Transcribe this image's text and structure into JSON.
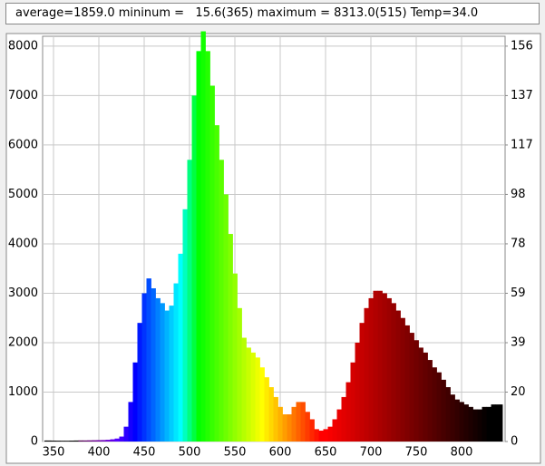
{
  "status": "average=1859.0 mininum =   15.6(365) maximum = 8313.0(515) Temp=34.0",
  "chart_data": {
    "type": "spectrum",
    "x": [
      340,
      345,
      350,
      355,
      360,
      365,
      370,
      375,
      380,
      385,
      390,
      395,
      400,
      405,
      410,
      415,
      420,
      425,
      430,
      435,
      440,
      445,
      450,
      455,
      460,
      465,
      470,
      475,
      480,
      485,
      490,
      495,
      500,
      505,
      510,
      515,
      520,
      525,
      530,
      535,
      540,
      545,
      550,
      555,
      560,
      565,
      570,
      575,
      580,
      585,
      590,
      595,
      600,
      605,
      610,
      615,
      620,
      625,
      630,
      635,
      640,
      645,
      650,
      655,
      660,
      665,
      670,
      675,
      680,
      685,
      690,
      695,
      700,
      705,
      710,
      715,
      720,
      725,
      730,
      735,
      740,
      745,
      750,
      755,
      760,
      765,
      770,
      775,
      780,
      785,
      790,
      795,
      800,
      805,
      810,
      815,
      820,
      825,
      830,
      835,
      840,
      845
    ],
    "values": [
      20,
      20,
      18,
      17,
      16,
      16,
      18,
      20,
      22,
      22,
      24,
      26,
      28,
      30,
      35,
      45,
      60,
      100,
      300,
      800,
      1600,
      2400,
      3000,
      3300,
      3100,
      2900,
      2800,
      2650,
      2750,
      3200,
      3800,
      4700,
      5700,
      7000,
      7900,
      8300,
      7900,
      7200,
      6400,
      5700,
      5000,
      4200,
      3400,
      2700,
      2100,
      1900,
      1800,
      1700,
      1500,
      1300,
      1100,
      900,
      700,
      550,
      550,
      700,
      800,
      800,
      600,
      450,
      250,
      220,
      250,
      300,
      450,
      650,
      900,
      1200,
      1600,
      2000,
      2400,
      2700,
      2900,
      3050,
      3050,
      3000,
      2900,
      2800,
      2650,
      2500,
      2350,
      2200,
      2050,
      1900,
      1800,
      1650,
      1500,
      1400,
      1250,
      1100,
      950,
      850,
      800,
      750,
      700,
      650,
      650,
      700,
      700,
      750,
      750,
      750
    ],
    "xlim": [
      338,
      848
    ],
    "xticks": [
      350,
      400,
      450,
      500,
      550,
      600,
      650,
      700,
      750,
      800
    ],
    "ylim": [
      0,
      8200
    ],
    "yticks": [
      0,
      1000,
      2000,
      3000,
      4000,
      5000,
      6000,
      7000,
      8000
    ],
    "y2lim": [
      0,
      160.16
    ],
    "y2ticks": [
      0,
      {
        "value": 19.53,
        "label": "20"
      },
      {
        "value": 39.06,
        "label": "39"
      },
      {
        "value": 58.59,
        "label": "59"
      },
      {
        "value": 78.13,
        "label": "78"
      },
      {
        "value": 97.66,
        "label": "98"
      },
      {
        "value": 117.19,
        "label": "117"
      },
      {
        "value": 136.72,
        "label": "137"
      },
      {
        "value": 156.25,
        "label": "156"
      }
    ],
    "grid": true
  }
}
